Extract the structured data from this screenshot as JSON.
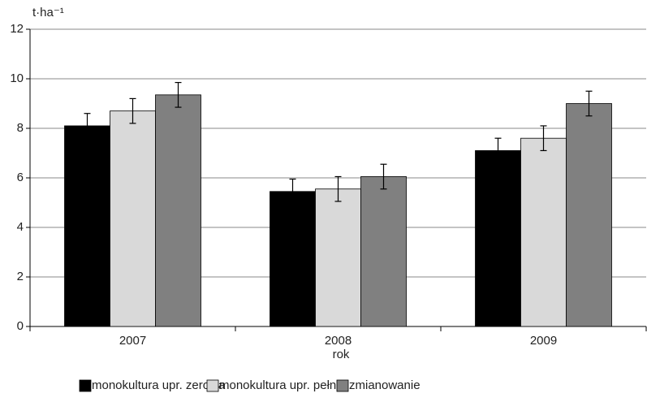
{
  "chart_data": {
    "type": "bar",
    "y_label": "t·ha⁻¹",
    "x_label": "rok",
    "categories": [
      "2007",
      "2008",
      "2009"
    ],
    "series": [
      {
        "name": "monokultura upr. zerowa",
        "color": "#000000",
        "values": [
          8.1,
          5.45,
          7.1
        ],
        "errors": [
          0.5,
          0.5,
          0.5
        ]
      },
      {
        "name": "monokultura upr. pełna",
        "color": "#d9d9d9",
        "values": [
          8.7,
          5.55,
          7.6
        ],
        "errors": [
          0.5,
          0.5,
          0.5
        ]
      },
      {
        "name": "zmianowanie",
        "color": "#808080",
        "values": [
          9.35,
          6.05,
          9.0
        ],
        "errors": [
          0.5,
          0.5,
          0.5
        ]
      }
    ],
    "ylim": [
      0,
      12
    ],
    "yticks": [
      0,
      2,
      4,
      6,
      8,
      10,
      12
    ],
    "grid": true,
    "legend": "bottom"
  }
}
